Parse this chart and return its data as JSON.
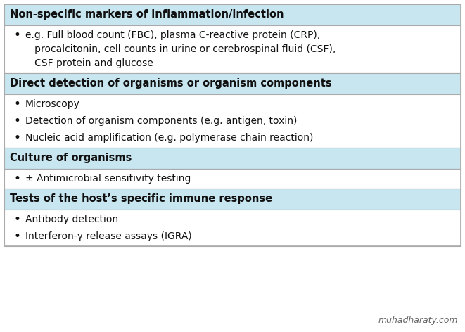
{
  "sections": [
    {
      "header": "Non-specific markers of inflammation/infection",
      "bullet_lines": [
        [
          "e.g. Full blood count (FBC), plasma C-reactive protein (CRP),",
          "   procalcitonin, cell counts in urine or cerebrospinal fluid (CSF),",
          "   CSF protein and glucose"
        ]
      ]
    },
    {
      "header": "Direct detection of organisms or organism components",
      "bullet_lines": [
        [
          "Microscopy"
        ],
        [
          "Detection of organism components (e.g. antigen, toxin)"
        ],
        [
          "Nucleic acid amplification (e.g. polymerase chain reaction)"
        ]
      ]
    },
    {
      "header": "Culture of organisms",
      "bullet_lines": [
        [
          "± Antimicrobial sensitivity testing"
        ]
      ]
    },
    {
      "header": "Tests of the host’s specific immune response",
      "bullet_lines": [
        [
          "Antibody detection"
        ],
        [
          "Interferon-γ release assays (IGRA)"
        ]
      ]
    }
  ],
  "header_bg": "#c8e6f0",
  "bullet_bg": "#ffffff",
  "border_color": "#aaaaaa",
  "header_color": "#111111",
  "bullet_color": "#111111",
  "header_fontsize": 10.5,
  "bullet_fontsize": 10.0,
  "watermark": "muhadharaty.com",
  "watermark_color": "#666666",
  "watermark_fontsize": 9,
  "fig_width": 6.61,
  "fig_height": 4.72,
  "dpi": 100
}
